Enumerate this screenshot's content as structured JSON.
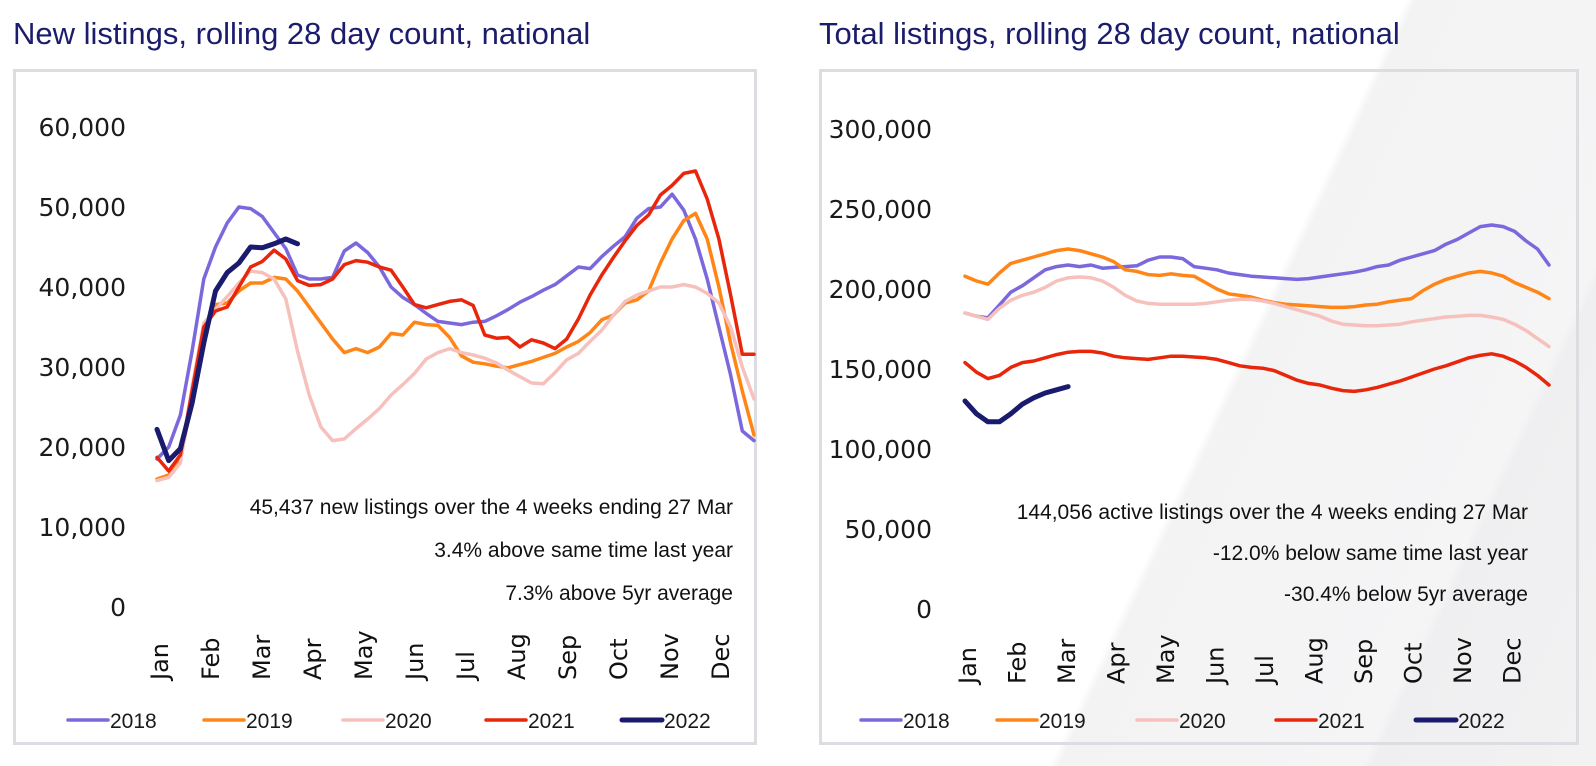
{
  "colors": {
    "2018": "#7b68dc",
    "2019": "#ff8517",
    "2020": "#f6c1bd",
    "2021": "#e8260b",
    "2022": "#1a1a6e",
    "title": "#1b1c6b"
  },
  "chart_data": [
    {
      "type": "line",
      "title": "New listings, rolling 28 day count, national",
      "xlabel": "",
      "ylabel": "",
      "ylim": [
        0,
        60000
      ],
      "yticks": [
        0,
        10000,
        20000,
        30000,
        40000,
        50000,
        60000
      ],
      "ytick_labels": [
        "0",
        "10,000",
        "20,000",
        "30,000",
        "40,000",
        "50,000",
        "60,000"
      ],
      "x_categories": [
        "Jan",
        "Feb",
        "Mar",
        "Apr",
        "May",
        "Jun",
        "Jul",
        "Aug",
        "Sep",
        "Oct",
        "Nov",
        "Dec"
      ],
      "x_unit": "week of year (0-51)",
      "legend": "bottom",
      "grid": false,
      "annotations": [
        "45,437 new listings over the 4 weeks ending 27 Mar",
        "3.4% above same time last year",
        "7.3% above 5yr average"
      ],
      "series": [
        {
          "name": "2018",
          "values": [
            18500,
            20000,
            24000,
            32000,
            41000,
            45000,
            48000,
            50000,
            49800,
            48800,
            46800,
            44800,
            41500,
            41000,
            41000,
            41200,
            44500,
            45500,
            44300,
            42500,
            40000,
            38700,
            37800,
            36700,
            35700,
            35500,
            35300,
            35600,
            35700,
            36400,
            37200,
            38100,
            38800,
            39600,
            40300,
            41400,
            42500,
            42300,
            43800,
            45100,
            46300,
            48600,
            49800,
            50000,
            51600,
            49600,
            46000,
            41000,
            35000,
            29000,
            22000,
            20800
          ]
        },
        {
          "name": "2019",
          "values": [
            16000,
            16500,
            18500,
            26000,
            34000,
            37800,
            38000,
            39500,
            40500,
            40500,
            41200,
            41000,
            39500,
            37500,
            35500,
            33500,
            31800,
            32300,
            31800,
            32500,
            34200,
            34000,
            35600,
            35300,
            35200,
            33700,
            31400,
            30600,
            30400,
            30100,
            29900,
            30300,
            30700,
            31200,
            31700,
            32500,
            33200,
            34300,
            35900,
            36500,
            38000,
            38400,
            39500,
            43000,
            46000,
            48300,
            49200,
            46000,
            40000,
            33000,
            27000,
            21500
          ]
        },
        {
          "name": "2020",
          "values": [
            15800,
            16200,
            18000,
            27500,
            35500,
            37200,
            38800,
            40500,
            42000,
            41800,
            41000,
            38500,
            32000,
            26500,
            22500,
            20800,
            21000,
            22300,
            23500,
            24800,
            26500,
            27800,
            29200,
            31000,
            31800,
            32300,
            31800,
            31500,
            31100,
            30500,
            29600,
            28800,
            28000,
            27900,
            29300,
            30900,
            31700,
            33200,
            34600,
            36500,
            38200,
            39000,
            39500,
            40000,
            40000,
            40300,
            40000,
            39200,
            38000,
            35000,
            30000,
            26000
          ]
        },
        {
          "name": "2021",
          "values": [
            18700,
            17000,
            19000,
            27000,
            35000,
            37000,
            37500,
            40000,
            42500,
            43200,
            44600,
            43500,
            40800,
            40200,
            40300,
            41000,
            42800,
            43300,
            43100,
            42500,
            42100,
            40000,
            37800,
            37400,
            37800,
            38200,
            38400,
            37700,
            34000,
            33600,
            33700,
            32500,
            33400,
            33000,
            32300,
            33500,
            36000,
            39000,
            41500,
            43700,
            45800,
            47700,
            49000,
            51500,
            52700,
            54200,
            54500,
            51000,
            46000,
            39000,
            31600,
            31600
          ]
        },
        {
          "name": "2022",
          "values": [
            22200,
            18300,
            19800,
            25500,
            33000,
            39500,
            41800,
            43000,
            45000,
            44900,
            45400,
            46000,
            45400
          ]
        }
      ]
    },
    {
      "type": "line",
      "title": "Total listings, rolling 28 day count, national",
      "xlabel": "",
      "ylabel": "",
      "ylim": [
        0,
        300000
      ],
      "yticks": [
        0,
        50000,
        100000,
        150000,
        200000,
        250000,
        300000
      ],
      "ytick_labels": [
        "0",
        "50,000",
        "100,000",
        "150,000",
        "200,000",
        "250,000",
        "300,000"
      ],
      "x_categories": [
        "Jan",
        "Feb",
        "Mar",
        "Apr",
        "May",
        "Jun",
        "Jul",
        "Aug",
        "Sep",
        "Oct",
        "Nov",
        "Dec"
      ],
      "x_unit": "week of year (0-51)",
      "legend": "bottom",
      "grid": false,
      "annotations": [
        "144,056 active listings over the 4 weeks ending 27 Mar",
        "-12.0% below same time last year",
        "-30.4% below 5yr average"
      ],
      "series": [
        {
          "name": "2018",
          "values": [
            185000,
            183000,
            182000,
            190000,
            198000,
            202000,
            207000,
            212000,
            214000,
            215000,
            214000,
            215000,
            213000,
            213500,
            214000,
            214500,
            218000,
            220000,
            220000,
            219000,
            214000,
            213000,
            212000,
            210000,
            209000,
            208000,
            207500,
            207000,
            206500,
            206000,
            206500,
            207500,
            208500,
            209500,
            210500,
            212000,
            214000,
            215000,
            218000,
            220000,
            222000,
            224000,
            228000,
            231000,
            235000,
            239000,
            240000,
            239000,
            236000,
            230000,
            225000,
            215000
          ]
        },
        {
          "name": "2019",
          "values": [
            208000,
            205000,
            203000,
            210000,
            216000,
            218000,
            220000,
            222000,
            224000,
            225000,
            224000,
            222000,
            220000,
            217000,
            212000,
            211000,
            209000,
            208500,
            209500,
            208500,
            208000,
            204000,
            200000,
            197000,
            196000,
            195000,
            193000,
            191500,
            190500,
            190000,
            189500,
            189000,
            188500,
            188500,
            189000,
            190000,
            190500,
            192000,
            193000,
            194000,
            199000,
            203000,
            206000,
            208000,
            210000,
            211000,
            210000,
            208000,
            204000,
            201000,
            198000,
            194000
          ]
        },
        {
          "name": "2020",
          "values": [
            185000,
            183000,
            181000,
            188000,
            193000,
            196000,
            198000,
            201000,
            205000,
            207000,
            207500,
            207000,
            205000,
            201000,
            196000,
            192500,
            191000,
            190500,
            190500,
            190500,
            190500,
            191000,
            192000,
            193000,
            193500,
            193500,
            192500,
            191000,
            189000,
            187000,
            185000,
            183000,
            180000,
            178000,
            177500,
            177000,
            177000,
            177500,
            178000,
            179500,
            180500,
            181500,
            182500,
            183000,
            183500,
            183500,
            182500,
            181000,
            178000,
            174000,
            169000,
            164000
          ]
        },
        {
          "name": "2021",
          "values": [
            154000,
            148000,
            144000,
            146000,
            151000,
            154000,
            155000,
            157000,
            159000,
            160500,
            161000,
            161000,
            160000,
            158000,
            157000,
            156500,
            156000,
            157000,
            158000,
            158000,
            157500,
            157000,
            156000,
            154000,
            152000,
            151000,
            150500,
            149000,
            146000,
            143000,
            141000,
            140000,
            138000,
            136500,
            136000,
            137000,
            138500,
            140500,
            142500,
            145000,
            147500,
            150000,
            152000,
            154500,
            157000,
            158500,
            159500,
            158000,
            155000,
            151000,
            146000,
            140000
          ]
        },
        {
          "name": "2022",
          "values": [
            130000,
            122000,
            117000,
            117000,
            122000,
            128000,
            132000,
            135000,
            137000,
            139000
          ]
        }
      ]
    }
  ],
  "left": {
    "title": "New listings, rolling 28 day count, national",
    "annotation_1": "45,437 new listings over the 4 weeks ending 27 Mar",
    "annotation_2": "3.4% above same time last year",
    "annotation_3": "7.3% above 5yr average"
  },
  "right": {
    "title": "Total listings, rolling 28 day count, national",
    "annotation_1": "144,056 active listings over the 4 weeks ending 27 Mar",
    "annotation_2": "-12.0% below same time last year",
    "annotation_3": "-30.4% below 5yr average"
  },
  "legend": [
    "2018",
    "2019",
    "2020",
    "2021",
    "2022"
  ]
}
